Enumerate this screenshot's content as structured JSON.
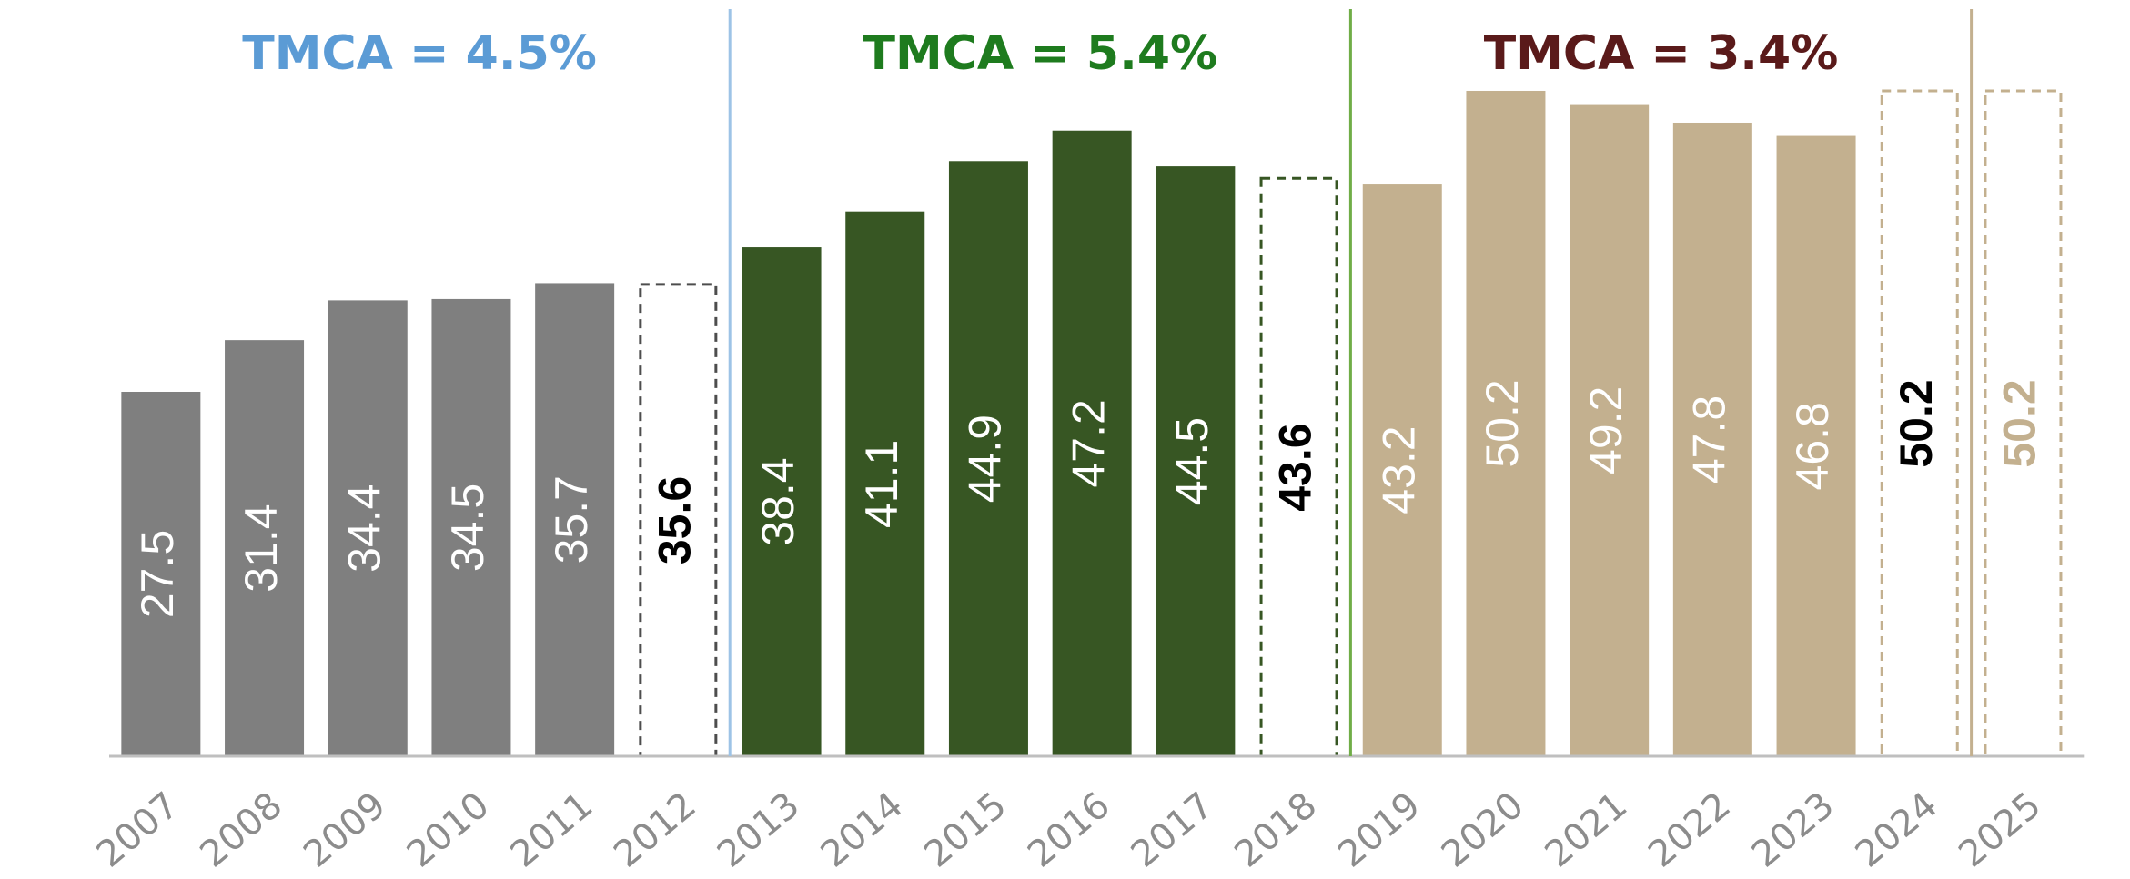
{
  "chart_data": {
    "type": "bar",
    "categories": [
      "2007",
      "2008",
      "2009",
      "2010",
      "2011",
      "2012",
      "2013",
      "2014",
      "2015",
      "2016",
      "2017",
      "2018",
      "2019",
      "2020",
      "2021",
      "2022",
      "2023",
      "2024",
      "2025"
    ],
    "values": [
      27.5,
      31.4,
      34.4,
      34.5,
      35.7,
      35.6,
      38.4,
      41.1,
      44.9,
      47.2,
      44.5,
      43.6,
      43.2,
      50.2,
      49.2,
      47.8,
      46.8,
      50.2,
      50.2
    ],
    "colors": [
      "#7f7f7f",
      "#7f7f7f",
      "#7f7f7f",
      "#7f7f7f",
      "#7f7f7f",
      "#4d4d4d",
      "#375623",
      "#375623",
      "#375623",
      "#375623",
      "#375623",
      "#375623",
      "#c3b08f",
      "#c3b08f",
      "#c3b08f",
      "#c3b08f",
      "#c3b08f",
      "#c3b08f",
      "#c3b08f"
    ],
    "dashed": [
      false,
      false,
      false,
      false,
      false,
      true,
      false,
      false,
      false,
      false,
      false,
      true,
      false,
      false,
      false,
      false,
      false,
      true,
      true
    ],
    "label_colors": [
      "#ffffff",
      "#ffffff",
      "#ffffff",
      "#ffffff",
      "#ffffff",
      "#000000",
      "#ffffff",
      "#ffffff",
      "#ffffff",
      "#ffffff",
      "#ffffff",
      "#000000",
      "#ffffff",
      "#ffffff",
      "#ffffff",
      "#ffffff",
      "#ffffff",
      "#000000",
      "#c3b08f"
    ],
    "ylim": [
      0,
      55
    ],
    "groups": [
      {
        "label": "TMCA = 4.5%",
        "color": "#5b9bd5",
        "divider": "#9dc3e6"
      },
      {
        "label": "TMCA = 5.4%",
        "color": "#1e7b1e",
        "divider": "#70ad47"
      },
      {
        "label": "TMCA = 3.4%",
        "color": "#5a1a1a",
        "divider": "#c3b08f"
      }
    ]
  }
}
